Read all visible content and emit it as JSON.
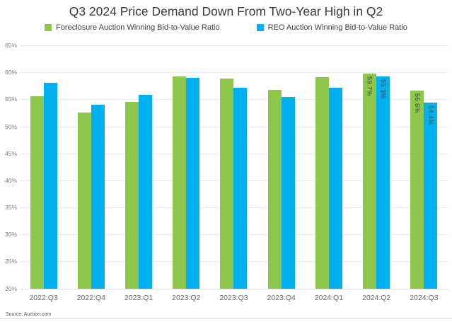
{
  "title": "Q3 2024 Price Demand Down From Two-Year High in Q2",
  "source": "Source: Auction.com",
  "colors": {
    "foreclosure": "#8dc74b",
    "reo": "#00b0f0",
    "gridline": "#e9e9e9",
    "axis_text": "#808080",
    "label_text": "#3f3f3f"
  },
  "legend": [
    {
      "label": "Foreclosure Auction Winning Bid-to-Value Ratio",
      "color": "#8dc74b"
    },
    {
      "label": "REO Auction Winning Bid-to-Value Ratio",
      "color": "#00b0f0"
    }
  ],
  "chart_data": {
    "type": "bar",
    "title": "Q3 2024 Price Demand Down From Two-Year High in Q2",
    "categories": [
      "2022:Q3",
      "2022:Q4",
      "2023:Q1",
      "2023:Q2",
      "2023:Q3",
      "2023:Q4",
      "2024:Q1",
      "2024:Q2",
      "2024:Q3"
    ],
    "series": [
      {
        "name": "Foreclosure Auction Winning Bid-to-Value Ratio",
        "color": "#8dc74b",
        "values": [
          55.6,
          52.5,
          54.5,
          59.2,
          58.8,
          56.8,
          59.1,
          59.7,
          56.6
        ]
      },
      {
        "name": "REO Auction Winning Bid-to-Value Ratio",
        "color": "#00b0f0",
        "values": [
          58.0,
          54.0,
          55.8,
          59.0,
          57.2,
          55.4,
          57.1,
          59.3,
          54.4
        ]
      }
    ],
    "data_labels": {
      "labeled_categories": [
        "2024:Q2",
        "2024:Q3"
      ],
      "labels": {
        "2024:Q2": [
          "59.7%",
          "59.3%"
        ],
        "2024:Q3": [
          "56.6%",
          "54.4%"
        ]
      }
    },
    "xlabel": "",
    "ylabel": "",
    "ylim": [
      20,
      65
    ],
    "ytick_step": 5,
    "ytick_labels": [
      "65%",
      "60%",
      "55%",
      "50%",
      "45%",
      "40%",
      "35%",
      "30%",
      "25%",
      "20%"
    ],
    "grid": true,
    "legend_position": "top"
  }
}
